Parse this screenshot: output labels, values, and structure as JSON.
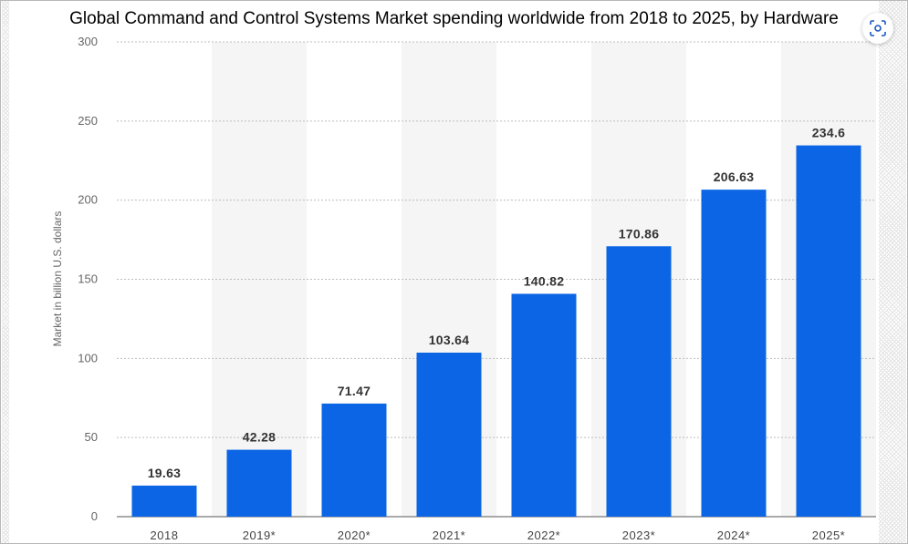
{
  "chart_data": {
    "type": "bar",
    "title": "Global Command and Control Systems Market spending worldwide from 2018 to 2025, by Hardware",
    "xlabel": "",
    "ylabel": "Market in billion U.S. dollars",
    "categories": [
      "2018",
      "2019*",
      "2020*",
      "2021*",
      "2022*",
      "2023*",
      "2024*",
      "2025*"
    ],
    "values": [
      19.63,
      42.28,
      71.47,
      103.64,
      140.82,
      170.86,
      206.63,
      234.6
    ],
    "value_labels": [
      "19.63",
      "42.28",
      "71.47",
      "103.64",
      "140.82",
      "170.86",
      "206.63",
      "234.6"
    ],
    "ylim": [
      0,
      300
    ],
    "yticks": [
      0,
      50,
      100,
      150,
      200,
      250,
      300
    ],
    "grid": true,
    "bar_color": "#0b65e4",
    "band_color": "#f5f5f5",
    "legend": "none"
  },
  "icons": {
    "visual_search": "visual-search-icon"
  }
}
